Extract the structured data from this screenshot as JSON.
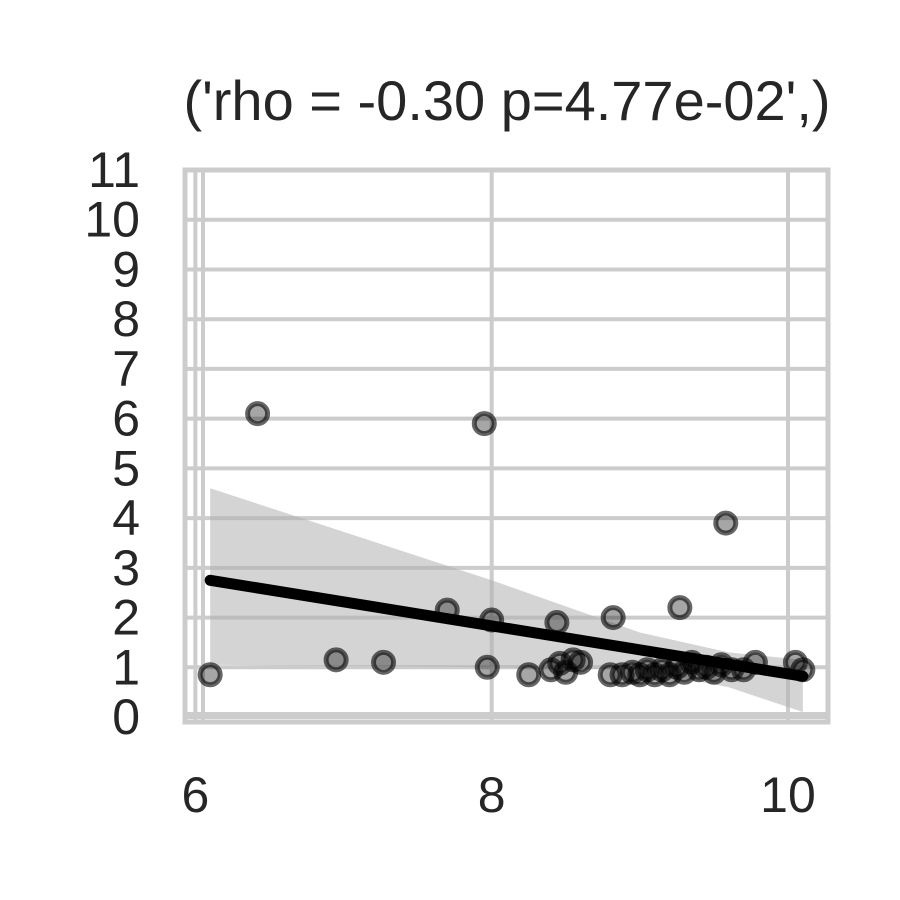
{
  "chart_data": {
    "type": "scatter",
    "title": "('rho = -0.30 p=4.77e-02',)",
    "xlabel": "",
    "ylabel": "",
    "xlim": [
      5.93,
      10.27
    ],
    "ylim": [
      -0.1,
      11.0
    ],
    "x_ticks": [
      6,
      8,
      10
    ],
    "y_ticks": [
      0,
      1,
      2,
      3,
      4,
      5,
      6,
      7,
      8,
      9,
      10,
      11
    ],
    "grid": true,
    "points": [
      {
        "x": 6.1,
        "y": 0.85
      },
      {
        "x": 6.42,
        "y": 6.1
      },
      {
        "x": 6.95,
        "y": 1.15
      },
      {
        "x": 7.27,
        "y": 1.1
      },
      {
        "x": 7.7,
        "y": 2.15
      },
      {
        "x": 7.95,
        "y": 5.9
      },
      {
        "x": 7.97,
        "y": 1.0
      },
      {
        "x": 8.0,
        "y": 1.95
      },
      {
        "x": 8.25,
        "y": 0.85
      },
      {
        "x": 8.4,
        "y": 0.95
      },
      {
        "x": 8.44,
        "y": 1.9
      },
      {
        "x": 8.46,
        "y": 1.08
      },
      {
        "x": 8.5,
        "y": 0.9
      },
      {
        "x": 8.55,
        "y": 1.15
      },
      {
        "x": 8.6,
        "y": 1.1
      },
      {
        "x": 8.8,
        "y": 0.85
      },
      {
        "x": 8.82,
        "y": 2.0
      },
      {
        "x": 8.88,
        "y": 0.85
      },
      {
        "x": 8.95,
        "y": 0.9
      },
      {
        "x": 9.0,
        "y": 0.85
      },
      {
        "x": 9.05,
        "y": 0.95
      },
      {
        "x": 9.1,
        "y": 0.85
      },
      {
        "x": 9.15,
        "y": 0.95
      },
      {
        "x": 9.2,
        "y": 0.85
      },
      {
        "x": 9.25,
        "y": 1.0
      },
      {
        "x": 9.27,
        "y": 2.2
      },
      {
        "x": 9.3,
        "y": 0.9
      },
      {
        "x": 9.35,
        "y": 1.1
      },
      {
        "x": 9.4,
        "y": 0.95
      },
      {
        "x": 9.45,
        "y": 1.0
      },
      {
        "x": 9.5,
        "y": 0.9
      },
      {
        "x": 9.55,
        "y": 1.05
      },
      {
        "x": 9.58,
        "y": 3.9
      },
      {
        "x": 9.62,
        "y": 0.95
      },
      {
        "x": 9.7,
        "y": 0.95
      },
      {
        "x": 9.78,
        "y": 1.1
      },
      {
        "x": 10.05,
        "y": 1.1
      },
      {
        "x": 10.1,
        "y": 0.95
      }
    ],
    "regression": {
      "x0": 6.1,
      "y0": 2.75,
      "x1": 10.1,
      "y1": 0.82
    },
    "confidence_band": {
      "x": [
        6.1,
        8.0,
        9.0,
        9.6,
        10.1
      ],
      "upper": [
        4.6,
        2.75,
        1.7,
        1.3,
        1.15
      ],
      "lower": [
        1.05,
        1.0,
        0.95,
        0.6,
        0.1
      ]
    },
    "colors": {
      "points": "#000000",
      "line": "#000000",
      "band": "#b0b0b0",
      "grid": "#cccccc",
      "text": "#262626"
    }
  }
}
